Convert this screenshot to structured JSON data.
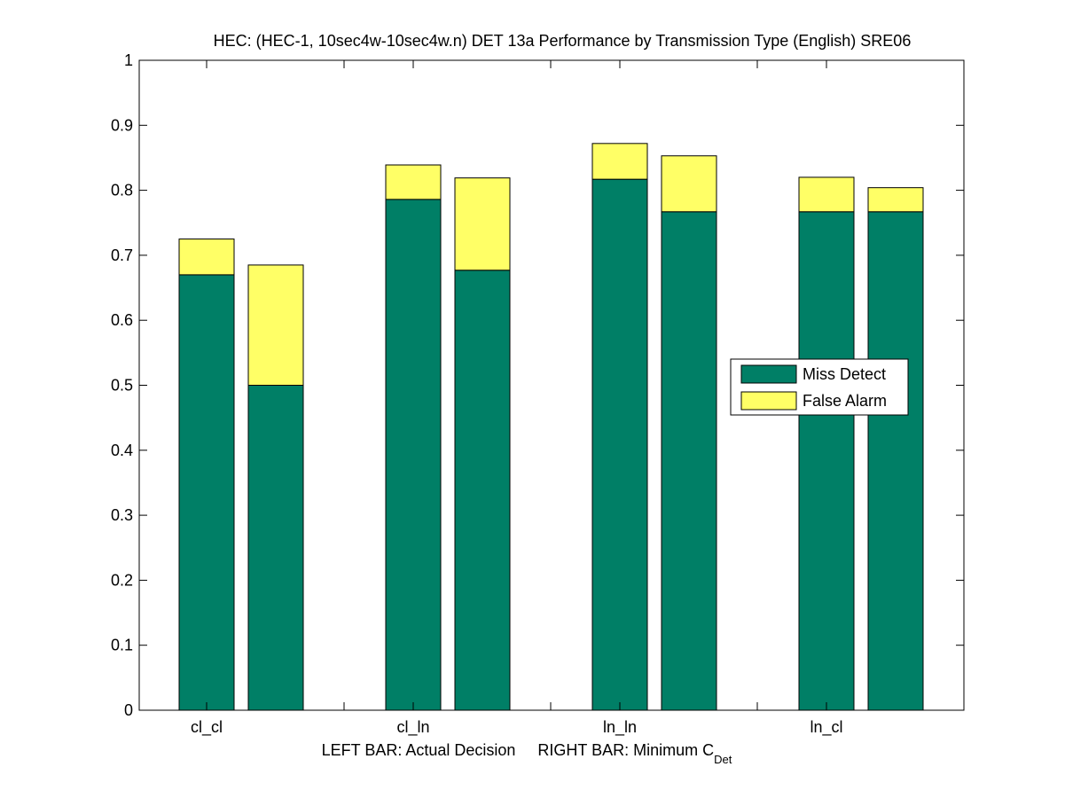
{
  "chart_data": {
    "type": "bar",
    "stacked": true,
    "title": "HEC: (HEC-1, 10sec4w-10sec4w.n) DET 13a Performance by Transmission Type (English) SRE06",
    "xlabel": {
      "prefix": "LEFT BAR: Actual Decision     RIGHT BAR: Minimum C",
      "subscript": "Det"
    },
    "ylabel": "",
    "ylim": [
      0,
      1
    ],
    "yticks": [
      "0",
      "0.1",
      "0.2",
      "0.3",
      "0.4",
      "0.5",
      "0.6",
      "0.7",
      "0.8",
      "0.9",
      "1"
    ],
    "categories": [
      "cl_cl",
      "cl_ln",
      "ln_ln",
      "ln_cl"
    ],
    "bars_per_category": [
      "Actual Decision",
      "Minimum CDet"
    ],
    "series": [
      {
        "name": "Miss Detect",
        "color": "#007F66",
        "values": [
          [
            0.67,
            0.5
          ],
          [
            0.786,
            0.677
          ],
          [
            0.817,
            0.767
          ],
          [
            0.767,
            0.767
          ]
        ]
      },
      {
        "name": "False Alarm",
        "color": "#FFFF66",
        "values": [
          [
            0.055,
            0.185
          ],
          [
            0.053,
            0.142
          ],
          [
            0.055,
            0.086
          ],
          [
            0.053,
            0.037
          ]
        ]
      }
    ],
    "legend_position": "right-middle",
    "grid": false
  }
}
